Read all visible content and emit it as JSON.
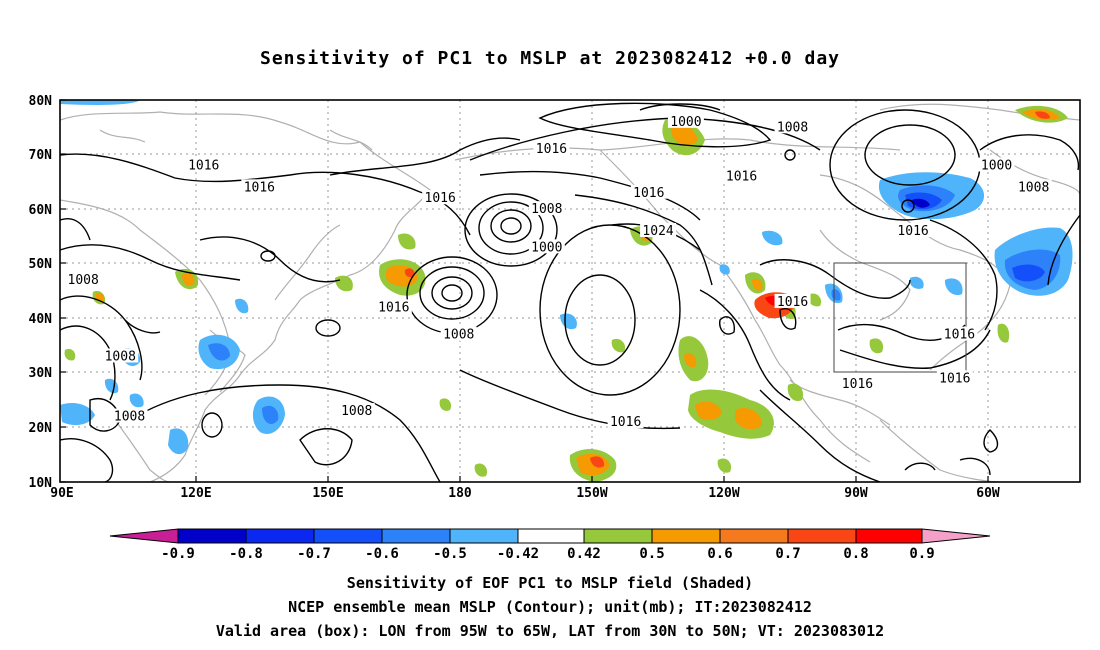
{
  "title": "Sensitivity of PC1 to MSLP at 2023082412 +0.0 day",
  "axes": {
    "lat_labels": [
      "80N",
      "70N",
      "60N",
      "50N",
      "40N",
      "30N",
      "20N",
      "10N"
    ],
    "lon_labels": [
      "90E",
      "120E",
      "150E",
      "180",
      "150W",
      "120W",
      "90W",
      "60W"
    ]
  },
  "contour_labels": [
    {
      "text": "1000",
      "lon": -165,
      "lat": 53
    },
    {
      "text": "1000",
      "lon": -135,
      "lat": 76
    },
    {
      "text": "1000",
      "lon": -68,
      "lat": 68
    },
    {
      "text": "1008",
      "lon": -112,
      "lat": 75
    },
    {
      "text": "1008",
      "lon": -60,
      "lat": 64
    },
    {
      "text": "1008",
      "lon": -165,
      "lat": 60
    },
    {
      "text": "1008",
      "lon": 176,
      "lat": 37
    },
    {
      "text": "1008",
      "lon": 95,
      "lat": 47
    },
    {
      "text": "1008",
      "lon": 103,
      "lat": 33
    },
    {
      "text": "1008",
      "lon": 105,
      "lat": 22
    },
    {
      "text": "1008",
      "lon": 154,
      "lat": 23
    },
    {
      "text": "1016",
      "lon": -164,
      "lat": 71
    },
    {
      "text": "1016",
      "lon": 121,
      "lat": 68
    },
    {
      "text": "1016",
      "lon": 133,
      "lat": 64
    },
    {
      "text": "1016",
      "lon": 172,
      "lat": 62
    },
    {
      "text": "1016",
      "lon": -143,
      "lat": 63
    },
    {
      "text": "1016",
      "lon": -123,
      "lat": 66
    },
    {
      "text": "1016",
      "lon": -86,
      "lat": 56
    },
    {
      "text": "1016",
      "lon": -112,
      "lat": 43
    },
    {
      "text": "1016",
      "lon": -76,
      "lat": 37
    },
    {
      "text": "1016",
      "lon": -77,
      "lat": 29
    },
    {
      "text": "1016",
      "lon": -98,
      "lat": 28
    },
    {
      "text": "1016",
      "lon": -148,
      "lat": 21
    },
    {
      "text": "1016",
      "lon": 162,
      "lat": 42
    },
    {
      "text": "1024",
      "lon": -141,
      "lat": 56
    }
  ],
  "valid_box": {
    "lon_min": -95,
    "lon_max": -65,
    "lat_min": 30,
    "lat_max": 50
  },
  "colorbar": {
    "labels": [
      "-0.9",
      "-0.8",
      "-0.7",
      "-0.6",
      "-0.5",
      "-0.42",
      "0.42",
      "0.5",
      "0.6",
      "0.7",
      "0.8",
      "0.9"
    ],
    "colors": [
      "#0000c8",
      "#0a28f0",
      "#1450fa",
      "#2d82fa",
      "#50b4fa",
      "#ffffff",
      "#96c83c",
      "#f59a00",
      "#f57a1e",
      "#fa4614",
      "#ff0000"
    ],
    "min_color": "#c81e96",
    "max_color": "#f5a0c8"
  },
  "captions": [
    "Sensitivity of EOF PC1 to MSLP field (Shaded)",
    "NCEP ensemble mean MSLP (Contour); unit(mb); IT:2023082412",
    "Valid area (box): LON from 95W to 65W, LAT from 30N to 50N; VT: 2023083012"
  ]
}
